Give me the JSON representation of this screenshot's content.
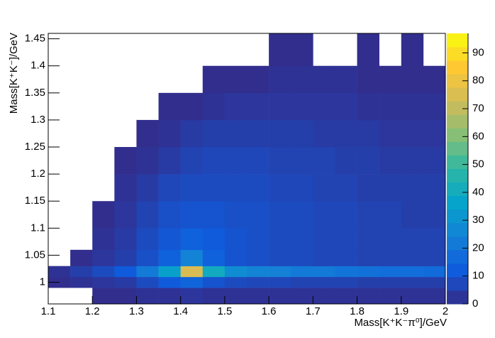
{
  "chart_data": {
    "type": "heatmap",
    "x_label": "Mass[K⁺K⁻π⁰]/GeV",
    "y_label": "Mass[K⁺K⁻]/GeV",
    "xbins": [
      1.1,
      1.15,
      1.2,
      1.25,
      1.3,
      1.35,
      1.4,
      1.45,
      1.5,
      1.55,
      1.6,
      1.65,
      1.7,
      1.75,
      1.8,
      1.85,
      1.9,
      1.95,
      2.0
    ],
    "ybins": [
      0.96,
      0.99,
      1.01,
      1.03,
      1.06,
      1.1,
      1.15,
      1.2,
      1.25,
      1.3,
      1.35,
      1.4,
      1.46
    ],
    "values": [
      [
        0,
        0,
        1,
        1,
        2,
        2,
        3,
        2,
        2,
        2,
        2,
        2,
        2,
        2,
        2,
        2,
        2,
        2
      ],
      [
        1,
        2,
        3,
        4,
        8,
        12,
        15,
        10,
        8,
        7,
        7,
        6,
        6,
        6,
        5,
        5,
        5,
        5
      ],
      [
        2,
        5,
        8,
        12,
        22,
        35,
        75,
        40,
        28,
        25,
        24,
        22,
        22,
        20,
        19,
        18,
        18,
        17
      ],
      [
        0,
        1,
        3,
        5,
        9,
        14,
        25,
        14,
        10,
        9,
        8,
        8,
        7,
        7,
        6,
        6,
        6,
        6
      ],
      [
        0,
        0,
        2,
        4,
        8,
        11,
        14,
        12,
        10,
        9,
        8,
        8,
        7,
        7,
        6,
        6,
        6,
        6
      ],
      [
        0,
        0,
        1,
        3,
        6,
        9,
        10,
        10,
        9,
        9,
        8,
        8,
        7,
        7,
        6,
        6,
        5,
        5
      ],
      [
        0,
        0,
        0,
        2,
        4,
        7,
        8,
        8,
        8,
        8,
        7,
        7,
        6,
        6,
        5,
        5,
        5,
        5
      ],
      [
        0,
        0,
        0,
        1,
        2,
        4,
        6,
        7,
        7,
        7,
        6,
        6,
        6,
        5,
        5,
        4,
        4,
        4
      ],
      [
        0,
        0,
        0,
        0,
        1,
        2,
        4,
        5,
        5,
        5,
        5,
        5,
        4,
        4,
        4,
        3,
        3,
        3
      ],
      [
        0,
        0,
        0,
        0,
        0,
        1,
        1,
        2,
        3,
        3,
        3,
        3,
        3,
        3,
        2,
        2,
        2,
        2
      ],
      [
        0,
        0,
        0,
        0,
        0,
        0,
        0,
        1,
        1,
        1,
        2,
        2,
        2,
        2,
        1,
        1,
        1,
        1
      ],
      [
        0,
        0,
        0,
        0,
        0,
        0,
        0,
        0,
        0,
        0,
        1,
        1,
        0,
        0,
        1,
        0,
        1,
        0
      ]
    ],
    "xlim": [
      1.1,
      2.0
    ],
    "xticks": [
      1.1,
      1.2,
      1.3,
      1.4,
      1.5,
      1.6,
      1.7,
      1.8,
      1.9,
      2
    ],
    "ylim": [
      0.96,
      1.46
    ],
    "yticks": [
      1,
      1.05,
      1.1,
      1.15,
      1.2,
      1.25,
      1.3,
      1.35,
      1.4,
      1.45
    ],
    "zlim": [
      0,
      97
    ],
    "zticks": [
      0,
      10,
      20,
      30,
      40,
      50,
      60,
      70,
      80,
      90
    ],
    "colorscale": [
      "#352a87",
      "#0f5cdd",
      "#1481d6",
      "#06a4ca",
      "#2eb7a4",
      "#87bf77",
      "#d1bb59",
      "#fec832",
      "#f9fb0e"
    ]
  }
}
